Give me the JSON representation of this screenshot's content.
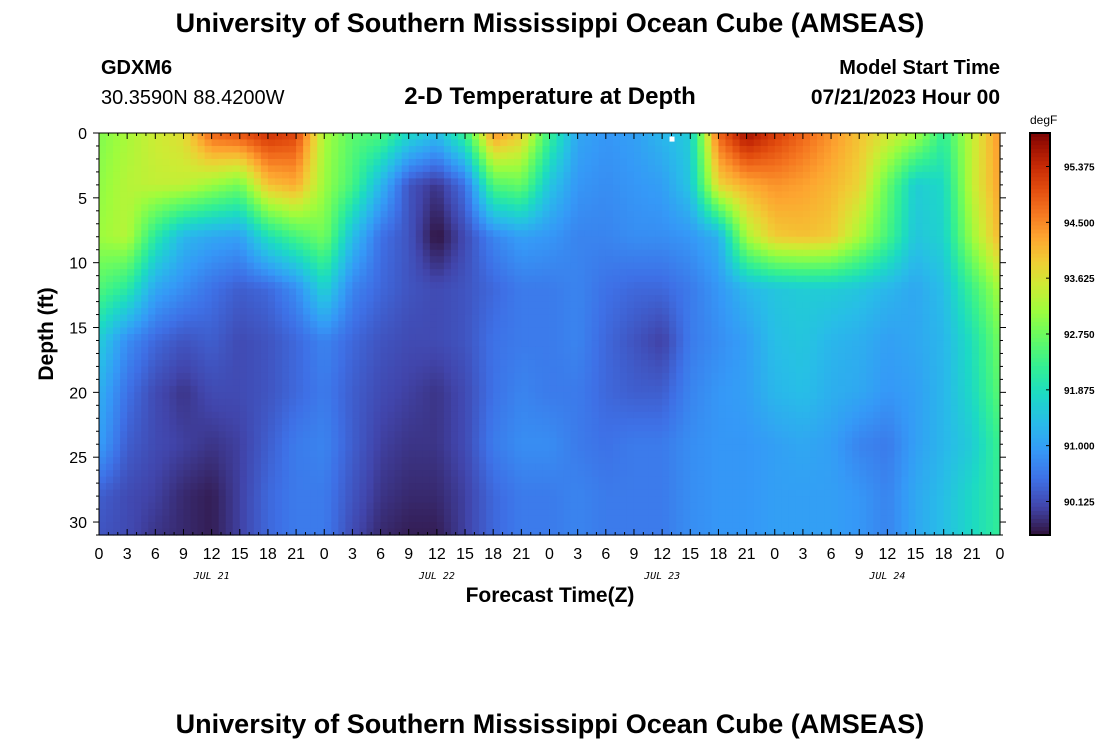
{
  "header": {
    "title": "University of Southern Mississippi Ocean Cube (AMSEAS)",
    "footer_title": "University of Southern Mississippi Ocean Cube (AMSEAS)",
    "station_id": "GDXM6",
    "coordinates": "30.3590N  88.4200W",
    "model_start_label": "Model Start Time",
    "model_start_value": "07/21/2023 Hour 00"
  },
  "chart_data": {
    "type": "heatmap",
    "title": "2-D Temperature at Depth",
    "xlabel": "Forecast Time(Z)",
    "ylabel": "Depth (ft)",
    "units": "degF",
    "x_hours": [
      0,
      96
    ],
    "x_tick_labels": [
      "0",
      "3",
      "6",
      "9",
      "12",
      "15",
      "18",
      "21",
      "0",
      "3",
      "6",
      "9",
      "12",
      "15",
      "18",
      "21",
      "0",
      "3",
      "6",
      "9",
      "12",
      "15",
      "18",
      "21",
      "0",
      "3",
      "6",
      "9",
      "12",
      "15",
      "18",
      "21",
      "0"
    ],
    "date_labels": [
      {
        "text": "JUL 21",
        "hour": 12
      },
      {
        "text": "JUL 22",
        "hour": 36
      },
      {
        "text": "JUL 23",
        "hour": 60
      },
      {
        "text": "JUL 24",
        "hour": 84
      }
    ],
    "y_ticks": [
      0,
      5,
      10,
      15,
      20,
      25,
      30
    ],
    "ylim": [
      0,
      31
    ],
    "colorbar": {
      "min": 89.6,
      "max": 95.9,
      "tick_values": [
        "95.375",
        "94.500",
        "93.625",
        "92.750",
        "91.875",
        "91.000",
        "90.125"
      ]
    },
    "grid_hours": [
      0,
      3,
      6,
      9,
      12,
      15,
      18,
      21,
      24,
      27,
      30,
      33,
      36,
      39,
      42,
      45,
      48,
      51,
      54,
      57,
      60,
      63,
      66,
      69,
      72,
      75,
      78,
      81,
      84,
      87,
      90,
      93,
      96
    ],
    "grid_depths": [
      0,
      4,
      8,
      12,
      16,
      20,
      24,
      28,
      31
    ],
    "temperature_grid": [
      [
        92.9,
        93.2,
        93.5,
        93.7,
        94.8,
        95.0,
        95.3,
        95.1,
        93.2,
        92.6,
        92.5,
        91.8,
        91.4,
        92.3,
        94.4,
        93.9,
        92.3,
        91.1,
        90.9,
        91.0,
        91.3,
        91.6,
        94.8,
        95.7,
        95.2,
        94.8,
        94.4,
        94.0,
        93.6,
        93.2,
        92.2,
        93.4,
        94.4
      ],
      [
        93.0,
        93.3,
        93.4,
        93.4,
        93.1,
        92.8,
        94.0,
        94.2,
        93.1,
        92.4,
        91.3,
        90.2,
        89.9,
        90.5,
        92.5,
        92.7,
        91.5,
        90.9,
        90.8,
        90.9,
        91.0,
        91.5,
        93.8,
        94.2,
        94.4,
        94.3,
        94.1,
        93.8,
        92.7,
        91.6,
        91.8,
        93.4,
        94.3
      ],
      [
        93.1,
        93.3,
        92.1,
        91.3,
        91.1,
        91.0,
        91.9,
        92.4,
        92.8,
        91.4,
        90.5,
        90.2,
        89.6,
        90.1,
        90.7,
        91.0,
        90.9,
        90.7,
        90.7,
        90.8,
        90.8,
        90.9,
        91.2,
        93.2,
        93.9,
        94.0,
        93.9,
        93.2,
        92.4,
        91.5,
        91.7,
        93.1,
        94.1
      ],
      [
        92.5,
        92.1,
        91.1,
        90.8,
        90.5,
        90.3,
        90.4,
        90.8,
        91.7,
        90.7,
        90.4,
        90.2,
        90.1,
        90.2,
        90.4,
        90.6,
        90.6,
        90.7,
        90.5,
        90.4,
        90.4,
        90.6,
        90.9,
        91.3,
        91.5,
        91.6,
        91.6,
        91.5,
        91.3,
        91.1,
        91.4,
        92.3,
        93.2
      ],
      [
        91.6,
        90.8,
        90.4,
        90.2,
        90.3,
        90.1,
        90.2,
        90.4,
        90.7,
        90.4,
        90.2,
        90.1,
        90.1,
        90.2,
        90.5,
        90.6,
        90.6,
        90.7,
        90.4,
        90.2,
        90.0,
        90.6,
        90.8,
        91.0,
        91.4,
        91.5,
        91.3,
        91.2,
        91.0,
        91.1,
        91.3,
        91.9,
        92.8
      ],
      [
        91.2,
        90.5,
        90.1,
        89.9,
        90.1,
        90.1,
        90.2,
        90.4,
        90.6,
        90.3,
        90.1,
        90.0,
        89.9,
        90.1,
        90.5,
        90.7,
        90.6,
        90.6,
        90.4,
        90.3,
        90.3,
        90.7,
        90.9,
        91.0,
        91.3,
        91.4,
        91.2,
        91.1,
        90.9,
        91.0,
        91.3,
        91.8,
        92.6
      ],
      [
        91.0,
        90.3,
        90.1,
        90.0,
        89.9,
        90.0,
        90.3,
        90.6,
        90.7,
        90.3,
        90.0,
        89.9,
        89.9,
        90.1,
        90.6,
        90.8,
        90.8,
        90.6,
        90.5,
        90.6,
        90.6,
        90.8,
        90.9,
        90.9,
        91.0,
        91.1,
        91.0,
        90.7,
        90.6,
        91.0,
        91.3,
        91.6,
        92.3
      ],
      [
        90.3,
        90.1,
        90.0,
        89.8,
        89.7,
        90.0,
        90.4,
        90.6,
        90.6,
        90.2,
        89.9,
        89.8,
        89.8,
        90.0,
        90.4,
        90.6,
        90.6,
        90.7,
        90.6,
        90.6,
        90.6,
        90.8,
        90.9,
        90.9,
        91.0,
        91.0,
        91.0,
        90.9,
        90.7,
        91.1,
        91.4,
        91.8,
        92.2
      ],
      [
        90.2,
        90.1,
        89.9,
        89.8,
        89.7,
        90.0,
        90.4,
        90.6,
        90.6,
        90.1,
        89.8,
        89.7,
        89.7,
        90.0,
        90.4,
        90.6,
        90.6,
        90.7,
        90.6,
        90.6,
        90.6,
        90.8,
        90.9,
        90.9,
        91.0,
        91.0,
        91.0,
        90.9,
        90.7,
        91.1,
        91.4,
        91.8,
        92.2
      ]
    ],
    "marker": {
      "hour": 61,
      "depth": 0.2
    }
  }
}
